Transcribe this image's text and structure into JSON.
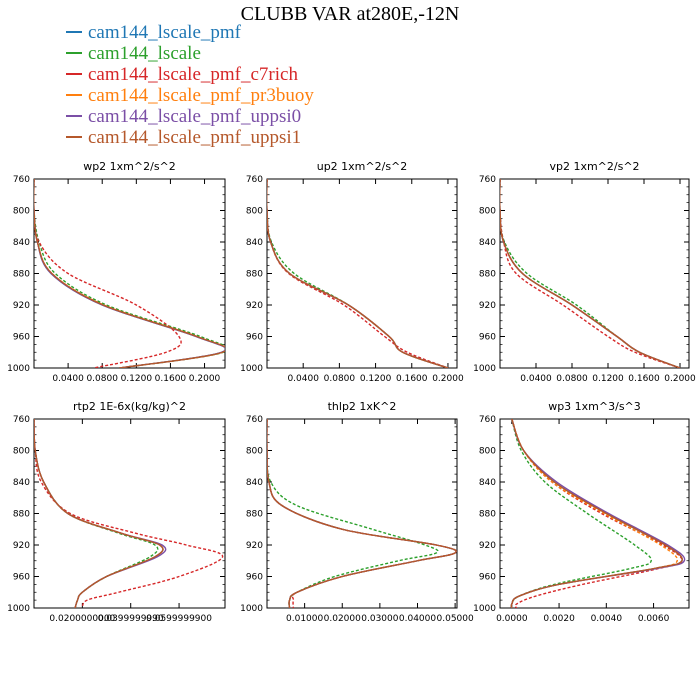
{
  "title": "CLUBB VAR at280E,-12N",
  "legend": [
    {
      "label": "cam144_lscale_pmf",
      "color": "#1f77b4"
    },
    {
      "label": "cam144_lscale",
      "color": "#2ca02c"
    },
    {
      "label": "cam144_lscale_pmf_c7rich",
      "color": "#d62728"
    },
    {
      "label": "cam144_lscale_pmf_pr3buoy",
      "color": "#ff7f0e"
    },
    {
      "label": "cam144_lscale_pmf_uppsi0",
      "color": "#7b4fa6"
    },
    {
      "label": "cam144_lscale_pmf_uppsi1",
      "color": "#b5582b"
    }
  ],
  "chart_data": [
    {
      "type": "line",
      "title": "wp2  1xm^2/s^2",
      "y": [
        760,
        800,
        840,
        880,
        920,
        960,
        980,
        1000
      ],
      "xlim": [
        0,
        0.224
      ],
      "ylim": [
        760,
        1000
      ],
      "xticks": [
        "0.0400",
        "0.0800",
        "0.1200",
        "0.1600",
        "0.2000"
      ],
      "xtick_values": [
        0.04,
        0.08,
        0.12,
        0.16,
        0.2
      ],
      "yticks": [
        "760",
        "800",
        "840",
        "880",
        "920",
        "960",
        "1000"
      ],
      "series": [
        {
          "color": "#1f77b4",
          "dashed": false,
          "values": [
            0,
            0,
            0.004,
            0.02,
            0.08,
            0.19,
            0.22,
            0.1
          ]
        },
        {
          "color": "#2ca02c",
          "dashed": true,
          "values": [
            0,
            0,
            0.006,
            0.025,
            0.085,
            0.195,
            0.222,
            0.1
          ]
        },
        {
          "color": "#d62728",
          "dashed": true,
          "values": [
            0,
            0,
            0.006,
            0.04,
            0.12,
            0.17,
            0.155,
            0.07
          ]
        },
        {
          "color": "#ff7f0e",
          "dashed": true,
          "values": [
            0,
            0,
            0.004,
            0.021,
            0.082,
            0.191,
            0.221,
            0.1
          ]
        },
        {
          "color": "#7b4fa6",
          "dashed": false,
          "values": [
            0,
            0,
            0.004,
            0.02,
            0.08,
            0.19,
            0.22,
            0.1
          ]
        },
        {
          "color": "#b5582b",
          "dashed": false,
          "values": [
            0,
            0,
            0.004,
            0.021,
            0.081,
            0.191,
            0.221,
            0.1
          ]
        }
      ]
    },
    {
      "type": "line",
      "title": "up2  1xm^2/s^2",
      "y": [
        760,
        800,
        840,
        880,
        920,
        960,
        980,
        1000
      ],
      "xlim": [
        0,
        0.21
      ],
      "ylim": [
        760,
        1000
      ],
      "xticks": [
        "0.0400",
        "0.0800",
        "0.1200",
        "0.1600",
        "0.2000"
      ],
      "xtick_values": [
        0.04,
        0.08,
        0.12,
        0.16,
        0.2
      ],
      "yticks": [
        "760",
        "800",
        "840",
        "880",
        "920",
        "960",
        "1000"
      ],
      "series": [
        {
          "color": "#1f77b4",
          "dashed": false,
          "values": [
            0,
            0,
            0.004,
            0.025,
            0.09,
            0.135,
            0.15,
            0.2
          ]
        },
        {
          "color": "#2ca02c",
          "dashed": true,
          "values": [
            0,
            0,
            0.005,
            0.03,
            0.09,
            0.135,
            0.15,
            0.2
          ]
        },
        {
          "color": "#d62728",
          "dashed": true,
          "values": [
            0,
            0,
            0.004,
            0.024,
            0.085,
            0.13,
            0.155,
            0.2
          ]
        },
        {
          "color": "#ff7f0e",
          "dashed": true,
          "values": [
            0,
            0,
            0.004,
            0.025,
            0.09,
            0.135,
            0.15,
            0.2
          ]
        },
        {
          "color": "#7b4fa6",
          "dashed": false,
          "values": [
            0,
            0,
            0.004,
            0.025,
            0.09,
            0.135,
            0.15,
            0.2
          ]
        },
        {
          "color": "#b5582b",
          "dashed": false,
          "values": [
            0,
            0,
            0.004,
            0.025,
            0.09,
            0.135,
            0.15,
            0.2
          ]
        }
      ]
    },
    {
      "type": "line",
      "title": "vp2  1xm^2/s^2",
      "y": [
        760,
        800,
        840,
        880,
        920,
        960,
        980,
        1000
      ],
      "xlim": [
        0,
        0.21
      ],
      "ylim": [
        760,
        1000
      ],
      "xticks": [
        "0.0400",
        "0.0800",
        "0.1200",
        "0.1600",
        "0.2000"
      ],
      "xtick_values": [
        0.04,
        0.08,
        0.12,
        0.16,
        0.2
      ],
      "yticks": [
        "760",
        "800",
        "840",
        "880",
        "920",
        "960",
        "1000"
      ],
      "series": [
        {
          "color": "#1f77b4",
          "dashed": false,
          "values": [
            0,
            0,
            0.004,
            0.025,
            0.08,
            0.13,
            0.155,
            0.2
          ]
        },
        {
          "color": "#2ca02c",
          "dashed": true,
          "values": [
            0,
            0,
            0.005,
            0.03,
            0.085,
            0.13,
            0.155,
            0.2
          ]
        },
        {
          "color": "#d62728",
          "dashed": true,
          "values": [
            0,
            0,
            0.004,
            0.018,
            0.07,
            0.12,
            0.15,
            0.2
          ]
        },
        {
          "color": "#ff7f0e",
          "dashed": true,
          "values": [
            0,
            0,
            0.004,
            0.025,
            0.08,
            0.13,
            0.155,
            0.2
          ]
        },
        {
          "color": "#7b4fa6",
          "dashed": false,
          "values": [
            0,
            0,
            0.004,
            0.025,
            0.08,
            0.13,
            0.155,
            0.2
          ]
        },
        {
          "color": "#b5582b",
          "dashed": false,
          "values": [
            0,
            0,
            0.004,
            0.025,
            0.08,
            0.13,
            0.155,
            0.2
          ]
        }
      ]
    },
    {
      "type": "line",
      "title": "rtp2  1E-6x(kg/kg)^2",
      "y": [
        760,
        800,
        840,
        880,
        905,
        920,
        935,
        960,
        980,
        990,
        1000
      ],
      "xlim": [
        0,
        0.079
      ],
      "ylim": [
        760,
        1000
      ],
      "xticks": [
        "0.0200000000",
        "0.0399999990",
        "0.0599999900"
      ],
      "xtick_values": [
        0.02,
        0.04,
        0.06
      ],
      "yticks": [
        "760",
        "800",
        "840",
        "880",
        "920",
        "960",
        "1000"
      ],
      "series": [
        {
          "color": "#1f77b4",
          "dashed": false,
          "values": [
            0,
            0.0005,
            0.004,
            0.014,
            0.036,
            0.052,
            0.05,
            0.03,
            0.02,
            0.018,
            0.017
          ]
        },
        {
          "color": "#2ca02c",
          "dashed": true,
          "values": [
            0,
            0.0005,
            0.004,
            0.014,
            0.035,
            0.05,
            0.048,
            0.03,
            0.02,
            0.018,
            0.017
          ]
        },
        {
          "color": "#d62728",
          "dashed": true,
          "values": [
            0,
            0.0005,
            0.003,
            0.015,
            0.042,
            0.063,
            0.078,
            0.06,
            0.035,
            0.022,
            0.02
          ]
        },
        {
          "color": "#ff7f0e",
          "dashed": true,
          "values": [
            0,
            0.0005,
            0.004,
            0.014,
            0.036,
            0.052,
            0.05,
            0.03,
            0.02,
            0.018,
            0.017
          ]
        },
        {
          "color": "#7b4fa6",
          "dashed": false,
          "values": [
            0,
            0.0005,
            0.004,
            0.014,
            0.036,
            0.053,
            0.051,
            0.03,
            0.02,
            0.018,
            0.017
          ]
        },
        {
          "color": "#b5582b",
          "dashed": false,
          "values": [
            0,
            0.0005,
            0.004,
            0.014,
            0.036,
            0.052,
            0.05,
            0.03,
            0.02,
            0.018,
            0.017
          ]
        }
      ]
    },
    {
      "type": "line",
      "title": "thlp2  1xK^2",
      "y": [
        760,
        800,
        840,
        870,
        900,
        920,
        930,
        940,
        960,
        980,
        990,
        1000
      ],
      "xlim": [
        0,
        0.0505
      ],
      "ylim": [
        760,
        1000
      ],
      "xticks": [
        "0.01000",
        "0.02000",
        "0.03000",
        "0.04000",
        "0.05000"
      ],
      "xtick_values": [
        0.01,
        0.02,
        0.03,
        0.04,
        0.05
      ],
      "yticks": [
        "760",
        "800",
        "840",
        "880",
        "920",
        "960",
        "1000"
      ],
      "series": [
        {
          "color": "#1f77b4",
          "dashed": false,
          "values": [
            0,
            0,
            0.0005,
            0.004,
            0.02,
            0.045,
            0.05,
            0.04,
            0.02,
            0.008,
            0.006,
            0.006
          ]
        },
        {
          "color": "#2ca02c",
          "dashed": true,
          "values": [
            0,
            0,
            0.001,
            0.008,
            0.028,
            0.042,
            0.045,
            0.035,
            0.018,
            0.008,
            0.006,
            0.006
          ]
        },
        {
          "color": "#d62728",
          "dashed": true,
          "values": [
            0,
            0,
            0.0005,
            0.004,
            0.02,
            0.045,
            0.05,
            0.04,
            0.02,
            0.008,
            0.007,
            0.007
          ]
        },
        {
          "color": "#ff7f0e",
          "dashed": true,
          "values": [
            0,
            0,
            0.0005,
            0.004,
            0.02,
            0.045,
            0.05,
            0.04,
            0.02,
            0.008,
            0.006,
            0.006
          ]
        },
        {
          "color": "#7b4fa6",
          "dashed": false,
          "values": [
            0,
            0,
            0.0005,
            0.004,
            0.02,
            0.045,
            0.05,
            0.04,
            0.02,
            0.008,
            0.006,
            0.006
          ]
        },
        {
          "color": "#b5582b",
          "dashed": false,
          "values": [
            0,
            0,
            0.0005,
            0.004,
            0.02,
            0.045,
            0.05,
            0.04,
            0.02,
            0.008,
            0.006,
            0.006
          ]
        }
      ]
    },
    {
      "type": "line",
      "title": "wp3  1xm^3/s^3",
      "y": [
        760,
        800,
        840,
        880,
        920,
        940,
        950,
        970,
        985,
        995,
        1000
      ],
      "xlim": [
        -0.0005,
        0.0075
      ],
      "ylim": [
        760,
        1000
      ],
      "xticks": [
        "0.0000",
        "0.0020",
        "0.0040",
        "0.0060"
      ],
      "xtick_values": [
        0,
        0.002,
        0.004,
        0.006
      ],
      "yticks": [
        "760",
        "800",
        "840",
        "880",
        "920",
        "960",
        "1000"
      ],
      "series": [
        {
          "color": "#1f77b4",
          "dashed": false,
          "values": [
            0,
            0.0005,
            0.0018,
            0.004,
            0.0065,
            0.0072,
            0.006,
            0.002,
            0.0003,
            0,
            0
          ]
        },
        {
          "color": "#2ca02c",
          "dashed": true,
          "values": [
            0,
            0.0004,
            0.0014,
            0.0032,
            0.0052,
            0.0059,
            0.005,
            0.0018,
            0.0003,
            0,
            0
          ]
        },
        {
          "color": "#d62728",
          "dashed": true,
          "values": [
            0,
            0.0005,
            0.0017,
            0.0038,
            0.0064,
            0.0072,
            0.0062,
            0.003,
            0.001,
            0.0002,
            0.0002
          ]
        },
        {
          "color": "#ff7f0e",
          "dashed": true,
          "values": [
            0,
            0.0005,
            0.0017,
            0.0039,
            0.0063,
            0.007,
            0.006,
            0.002,
            0.0003,
            0,
            0
          ]
        },
        {
          "color": "#7b4fa6",
          "dashed": false,
          "values": [
            0,
            0.0005,
            0.0019,
            0.0041,
            0.0066,
            0.0073,
            0.0061,
            0.002,
            0.0003,
            0,
            0
          ]
        },
        {
          "color": "#b5582b",
          "dashed": false,
          "values": [
            0,
            0.0005,
            0.0018,
            0.004,
            0.0065,
            0.0072,
            0.006,
            0.002,
            0.0003,
            0,
            0
          ]
        }
      ]
    }
  ]
}
